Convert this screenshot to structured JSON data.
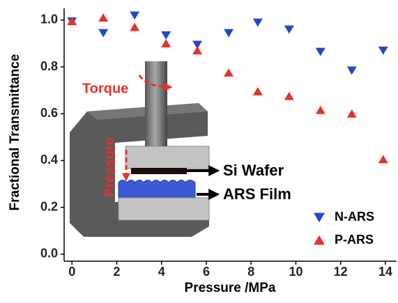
{
  "chart_data": {
    "type": "scatter",
    "x_label": "Pressure /MPa",
    "y_label": "Fractional Transmittance",
    "x": [
      0,
      1.4,
      2.8,
      4.2,
      5.6,
      7.0,
      8.3,
      9.7,
      11.1,
      12.5,
      13.9
    ],
    "series": [
      {
        "name": "N-ARS",
        "color": "#2448c8",
        "marker": "triangle-down",
        "values": [
          0.995,
          0.945,
          1.02,
          0.935,
          0.895,
          0.945,
          0.99,
          0.96,
          0.865,
          0.785,
          0.87
        ]
      },
      {
        "name": "P-ARS",
        "color": "#e8302c",
        "marker": "triangle-up",
        "values": [
          0.995,
          1.01,
          0.97,
          0.9,
          0.87,
          0.775,
          0.695,
          0.675,
          0.615,
          0.6,
          0.405
        ]
      }
    ],
    "xlim": [
      -0.35,
      14.5
    ],
    "ylim": [
      -0.03,
      1.05
    ],
    "xticks": [
      0,
      2,
      4,
      6,
      8,
      10,
      12,
      14
    ],
    "yticks": [
      {
        "value": 0,
        "label": "0.0"
      },
      {
        "value": 0.2,
        "label": "0.2"
      },
      {
        "value": 0.4,
        "label": "0.4"
      },
      {
        "value": 0.6,
        "label": "0.6"
      },
      {
        "value": 0.8,
        "label": "0.8"
      },
      {
        "value": 1.0,
        "label": "1.0"
      }
    ],
    "legend": "lower right",
    "annotations": [
      "Torque",
      "Pressure",
      "Si Wafer",
      "ARS Film"
    ]
  }
}
